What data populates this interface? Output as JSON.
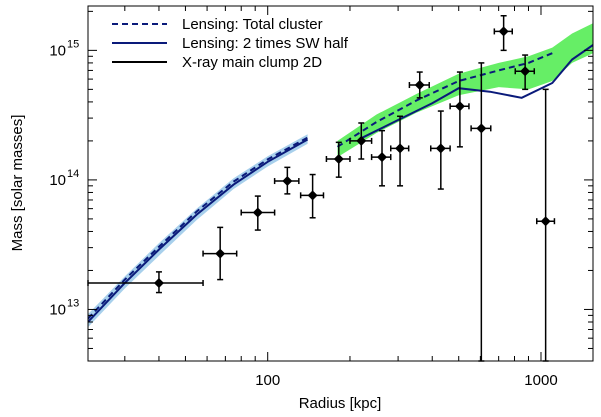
{
  "chart_data": {
    "type": "scatter",
    "xlabel": "Radius [kpc]",
    "ylabel": "Mass [solar masses]",
    "x_scale": "log",
    "y_scale": "log",
    "xlim": [
      22,
      1550
    ],
    "ylim": [
      4000000000000.0,
      2200000000000000.0
    ],
    "x_ticks": [
      {
        "value": 100,
        "label": "100"
      },
      {
        "value": 1000,
        "label": "1000"
      }
    ],
    "y_ticks": [
      {
        "value": 10000000000000.0,
        "base": "10",
        "exp": "13"
      },
      {
        "value": 100000000000000.0,
        "base": "10",
        "exp": "14"
      },
      {
        "value": 1000000000000000.0,
        "base": "10",
        "exp": "15"
      }
    ],
    "legend_position": "top-left",
    "colors": {
      "lensing_total": "#0a1a7a",
      "lensing_sw": "#0a1a7a",
      "xray": "#000000",
      "band_inner": "#a8d0ec",
      "band_outer": "#66ee66",
      "markers": "#000000"
    },
    "legend": [
      {
        "label": "Lensing: Total cluster",
        "style": "dashed",
        "color": "#0a1a7a"
      },
      {
        "label": "Lensing: 2 times SW half",
        "style": "solid",
        "color": "#0a1a7a"
      },
      {
        "label": "X-ray main clump 2D",
        "style": "solid",
        "color": "#000000"
      }
    ],
    "series": [
      {
        "id": "inner_band",
        "kind": "band",
        "x": [
          22,
          30,
          40,
          55,
          75,
          100,
          140
        ],
        "lower": [
          7300000000000.0,
          14500000000000.0,
          26000000000000.0,
          49000000000000.0,
          85000000000000.0,
          127000000000000.0,
          190000000000000.0
        ],
        "upper": [
          9200000000000.0,
          18000000000000.0,
          32500000000000.0,
          60000000000000.0,
          103000000000000.0,
          152000000000000.0,
          225000000000000.0
        ]
      },
      {
        "id": "outer_band",
        "kind": "band",
        "x": [
          180,
          250,
          350,
          500,
          700,
          900,
          1100,
          1300,
          1550
        ],
        "lower": [
          150000000000000.0,
          230000000000000.0,
          330000000000000.0,
          450000000000000.0,
          520000000000000.0,
          500000000000000.0,
          580000000000000.0,
          800000000000000.0,
          950000000000000.0
        ],
        "upper": [
          200000000000000.0,
          320000000000000.0,
          460000000000000.0,
          660000000000000.0,
          800000000000000.0,
          900000000000000.0,
          1050000000000000.0,
          1350000000000000.0,
          1620000000000000.0
        ]
      },
      {
        "id": "lensing_total_inner",
        "kind": "line",
        "style": "dashed",
        "x": [
          22,
          30,
          40,
          55,
          75,
          100,
          140
        ],
        "y": [
          8500000000000.0,
          17000000000000.0,
          30500000000000.0,
          57000000000000.0,
          97000000000000.0,
          144000000000000.0,
          212000000000000.0
        ]
      },
      {
        "id": "lensing_total_outer",
        "kind": "line",
        "style": "dashed",
        "x": [
          180,
          250,
          350,
          500,
          700,
          900,
          1100
        ],
        "y": [
          180000000000000.0,
          280000000000000.0,
          410000000000000.0,
          580000000000000.0,
          700000000000000.0,
          800000000000000.0,
          950000000000000.0
        ]
      },
      {
        "id": "lensing_sw_inner",
        "kind": "line",
        "style": "solid",
        "x": [
          22,
          30,
          40,
          55,
          75,
          100,
          140
        ],
        "y": [
          8000000000000.0,
          16000000000000.0,
          29000000000000.0,
          54000000000000.0,
          92000000000000.0,
          138000000000000.0,
          205000000000000.0
        ]
      },
      {
        "id": "lensing_sw_outer",
        "kind": "line",
        "style": "solid",
        "x": [
          220,
          300,
          400,
          500,
          650,
          850,
          1100,
          1300,
          1550
        ],
        "y": [
          210000000000000.0,
          290000000000000.0,
          390000000000000.0,
          510000000000000.0,
          480000000000000.0,
          430000000000000.0,
          560000000000000.0,
          850000000000000.0,
          1100000000000000.0
        ]
      },
      {
        "id": "xray_points",
        "kind": "errorbar",
        "points": [
          {
            "x": 40,
            "y": 16000000000000.0,
            "xlo": 22,
            "xhi": 58,
            "ylo": 13500000000000.0,
            "yhi": 19500000000000.0
          },
          {
            "x": 67,
            "y": 27000000000000.0,
            "xlo": 58,
            "xhi": 77,
            "ylo": 17000000000000.0,
            "yhi": 43000000000000.0
          },
          {
            "x": 92,
            "y": 56000000000000.0,
            "xlo": 80,
            "xhi": 106,
            "ylo": 41000000000000.0,
            "yhi": 75000000000000.0
          },
          {
            "x": 118,
            "y": 98000000000000.0,
            "xlo": 106,
            "xhi": 130,
            "ylo": 78000000000000.0,
            "yhi": 125000000000000.0
          },
          {
            "x": 146,
            "y": 76000000000000.0,
            "xlo": 132,
            "xhi": 160,
            "ylo": 51000000000000.0,
            "yhi": 110000000000000.0
          },
          {
            "x": 182,
            "y": 145000000000000.0,
            "xlo": 164,
            "xhi": 200,
            "ylo": 105000000000000.0,
            "yhi": 195000000000000.0
          },
          {
            "x": 220,
            "y": 200000000000000.0,
            "xlo": 200,
            "xhi": 240,
            "ylo": 145000000000000.0,
            "yhi": 275000000000000.0
          },
          {
            "x": 262,
            "y": 150000000000000.0,
            "xlo": 240,
            "xhi": 282,
            "ylo": 90000000000000.0,
            "yhi": 240000000000000.0
          },
          {
            "x": 305,
            "y": 175000000000000.0,
            "xlo": 282,
            "xhi": 328,
            "ylo": 90000000000000.0,
            "yhi": 310000000000000.0
          },
          {
            "x": 360,
            "y": 540000000000000.0,
            "xlo": 330,
            "xhi": 390,
            "ylo": 430000000000000.0,
            "yhi": 680000000000000.0
          },
          {
            "x": 430,
            "y": 175000000000000.0,
            "xlo": 395,
            "xhi": 465,
            "ylo": 85000000000000.0,
            "yhi": 340000000000000.0
          },
          {
            "x": 505,
            "y": 370000000000000.0,
            "xlo": 465,
            "xhi": 545,
            "ylo": 180000000000000.0,
            "yhi": 680000000000000.0
          },
          {
            "x": 605,
            "y": 250000000000000.0,
            "xlo": 555,
            "xhi": 655,
            "ylo": 4000000000000.0,
            "yhi": 800000000000000.0
          },
          {
            "x": 730,
            "y": 1400000000000000.0,
            "xlo": 675,
            "xhi": 785,
            "ylo": 1000000000000000.0,
            "yhi": 1850000000000000.0
          },
          {
            "x": 875,
            "y": 690000000000000.0,
            "xlo": 805,
            "xhi": 945,
            "ylo": 500000000000000.0,
            "yhi": 920000000000000.0
          },
          {
            "x": 1040,
            "y": 48000000000000.0,
            "xlo": 965,
            "xhi": 1120,
            "ylo": 4000000000000.0,
            "yhi": 500000000000000.0
          }
        ]
      }
    ]
  }
}
